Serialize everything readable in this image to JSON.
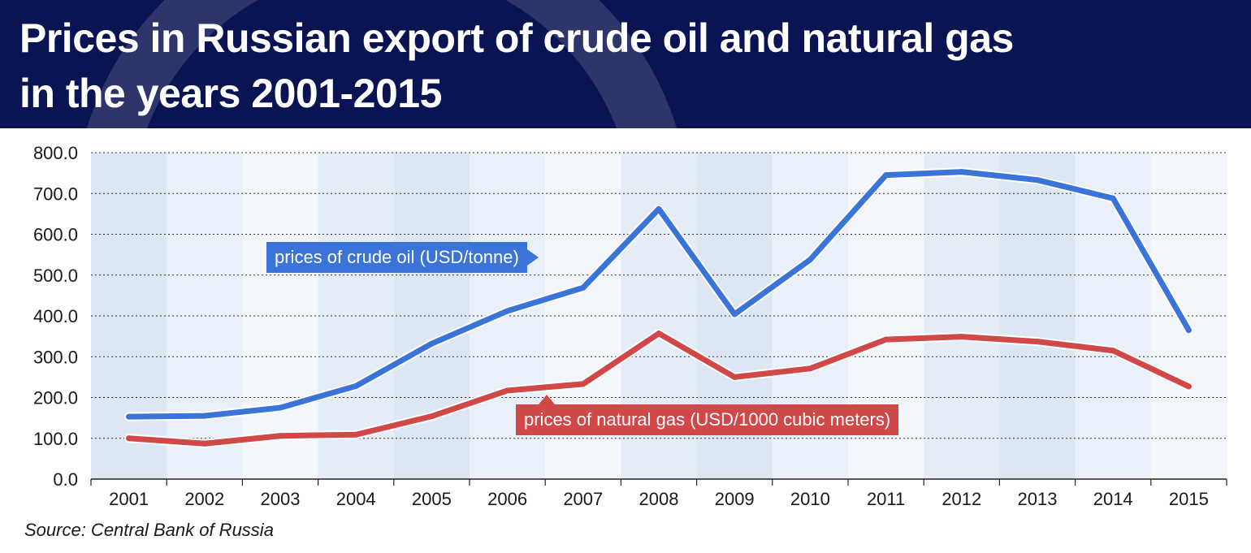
{
  "header": {
    "title_line1": "Prices in Russian export of crude oil and natural gas",
    "title_line2": "in the years 2001-2015"
  },
  "source": "Source: Central Bank of Russia",
  "colors": {
    "header_bg": "#0b1452",
    "oil": "#3a74d9",
    "gas": "#d04848"
  },
  "chart_data": {
    "type": "line",
    "categories": [
      "2001",
      "2002",
      "2003",
      "2004",
      "2005",
      "2006",
      "2007",
      "2008",
      "2009",
      "2010",
      "2011",
      "2012",
      "2013",
      "2014",
      "2015"
    ],
    "ylim": [
      0,
      800
    ],
    "yticks": [
      "0.0",
      "100.0",
      "200.0",
      "300.0",
      "400.0",
      "500.0",
      "600.0",
      "700.0",
      "800.0"
    ],
    "grid": true,
    "series": [
      {
        "name": "prices of crude oil (USD/tonne)",
        "color": "#3a74d9",
        "values": [
          153,
          155,
          175,
          228,
          332,
          412,
          469,
          662,
          404,
          538,
          745,
          753,
          733,
          688,
          365
        ]
      },
      {
        "name": "prices of natural gas (USD/1000 cubic meters)",
        "color": "#d04848",
        "values": [
          100,
          87,
          106,
          109,
          154,
          217,
          233,
          357,
          250,
          271,
          342,
          349,
          337,
          315,
          227
        ]
      }
    ]
  }
}
